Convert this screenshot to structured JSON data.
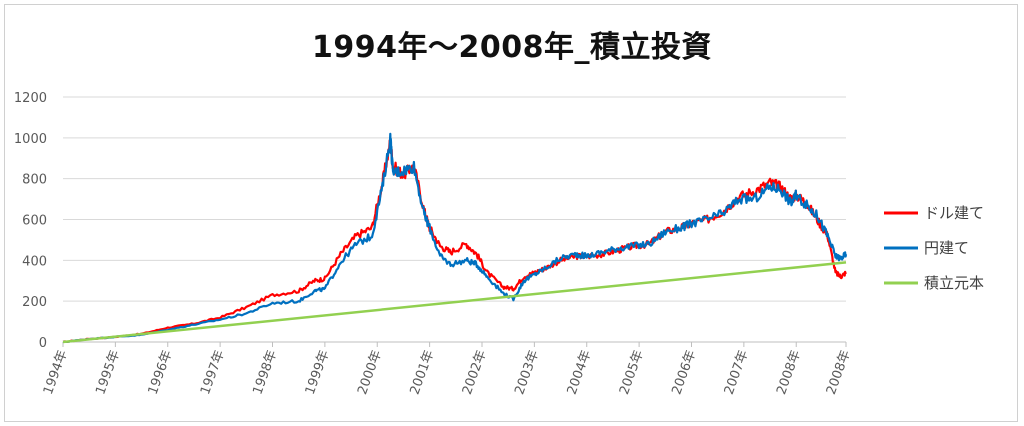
{
  "chart_data": {
    "type": "line",
    "title": "1994年～2008年_積立投資",
    "xlabel": "",
    "ylabel": "",
    "ylim": [
      0,
      1200
    ],
    "yticks": [
      0,
      200,
      400,
      600,
      800,
      1000,
      1200
    ],
    "xlim": [
      1994,
      2008.95
    ],
    "x_tick_labels": [
      "1994年",
      "1995年",
      "1996年",
      "1997年",
      "1998年",
      "1999年",
      "2000年",
      "2001年",
      "2002年",
      "2003年",
      "2004年",
      "2005年",
      "2006年",
      "2007年",
      "2008年",
      "2008年"
    ],
    "x_tick_values": [
      1994,
      1995,
      1996,
      1997,
      1998,
      1999,
      2000,
      2001,
      2002,
      2003,
      2004,
      2005,
      2006,
      2007,
      2008,
      2008.95
    ],
    "grid": true,
    "legend_position": "right",
    "series": [
      {
        "name": "ドル建て",
        "color": "#ff0000",
        "x": [
          1994.0,
          1994.5,
          1995.0,
          1995.5,
          1996.0,
          1996.5,
          1997.0,
          1997.5,
          1998.0,
          1998.5,
          1998.8,
          1999.0,
          1999.3,
          1999.6,
          1999.9,
          2000.1,
          2000.25,
          2000.3,
          2000.5,
          2000.7,
          2000.9,
          2001.0,
          2001.2,
          2001.4,
          2001.7,
          2001.9,
          2002.1,
          2002.4,
          2002.6,
          2002.8,
          2003.0,
          2003.2,
          2003.5,
          2003.8,
          2004.0,
          2004.3,
          2004.6,
          2004.9,
          2005.2,
          2005.5,
          2005.8,
          2006.0,
          2006.3,
          2006.6,
          2006.9,
          2007.2,
          2007.5,
          2007.7,
          2007.9,
          2008.0,
          2008.2,
          2008.4,
          2008.6,
          2008.75,
          2008.85,
          2008.95
        ],
        "y": [
          0,
          15,
          25,
          40,
          70,
          90,
          120,
          170,
          230,
          250,
          300,
          310,
          430,
          520,
          560,
          780,
          980,
          860,
          820,
          860,
          640,
          560,
          470,
          440,
          480,
          430,
          340,
          270,
          260,
          320,
          340,
          360,
          400,
          420,
          420,
          430,
          450,
          470,
          480,
          540,
          560,
          580,
          600,
          640,
          710,
          740,
          780,
          760,
          700,
          720,
          680,
          600,
          520,
          340,
          320,
          340
        ]
      },
      {
        "name": "円建て",
        "color": "#0070c0",
        "x": [
          1994.0,
          1994.5,
          1995.0,
          1995.5,
          1996.0,
          1996.5,
          1997.0,
          1997.5,
          1998.0,
          1998.5,
          1998.8,
          1999.0,
          1999.3,
          1999.6,
          1999.9,
          2000.1,
          2000.25,
          2000.3,
          2000.5,
          2000.7,
          2000.9,
          2001.0,
          2001.2,
          2001.4,
          2001.7,
          2001.9,
          2002.1,
          2002.4,
          2002.6,
          2002.8,
          2003.0,
          2003.2,
          2003.5,
          2003.8,
          2004.0,
          2004.3,
          2004.6,
          2004.9,
          2005.2,
          2005.5,
          2005.8,
          2006.0,
          2006.3,
          2006.6,
          2006.9,
          2007.2,
          2007.5,
          2007.7,
          2007.9,
          2008.0,
          2008.2,
          2008.4,
          2008.6,
          2008.75,
          2008.85,
          2008.95
        ],
        "y": [
          0,
          15,
          25,
          35,
          60,
          85,
          110,
          140,
          190,
          200,
          250,
          260,
          390,
          480,
          520,
          760,
          1000,
          830,
          840,
          860,
          620,
          560,
          420,
          380,
          400,
          380,
          320,
          240,
          210,
          300,
          330,
          360,
          410,
          430,
          420,
          440,
          460,
          470,
          480,
          540,
          560,
          580,
          600,
          630,
          700,
          700,
          760,
          750,
          680,
          720,
          670,
          620,
          520,
          420,
          410,
          430
        ]
      },
      {
        "name": "積立元本",
        "color": "#92d050",
        "x": [
          1994.0,
          2008.95
        ],
        "y": [
          0,
          390
        ]
      }
    ]
  }
}
